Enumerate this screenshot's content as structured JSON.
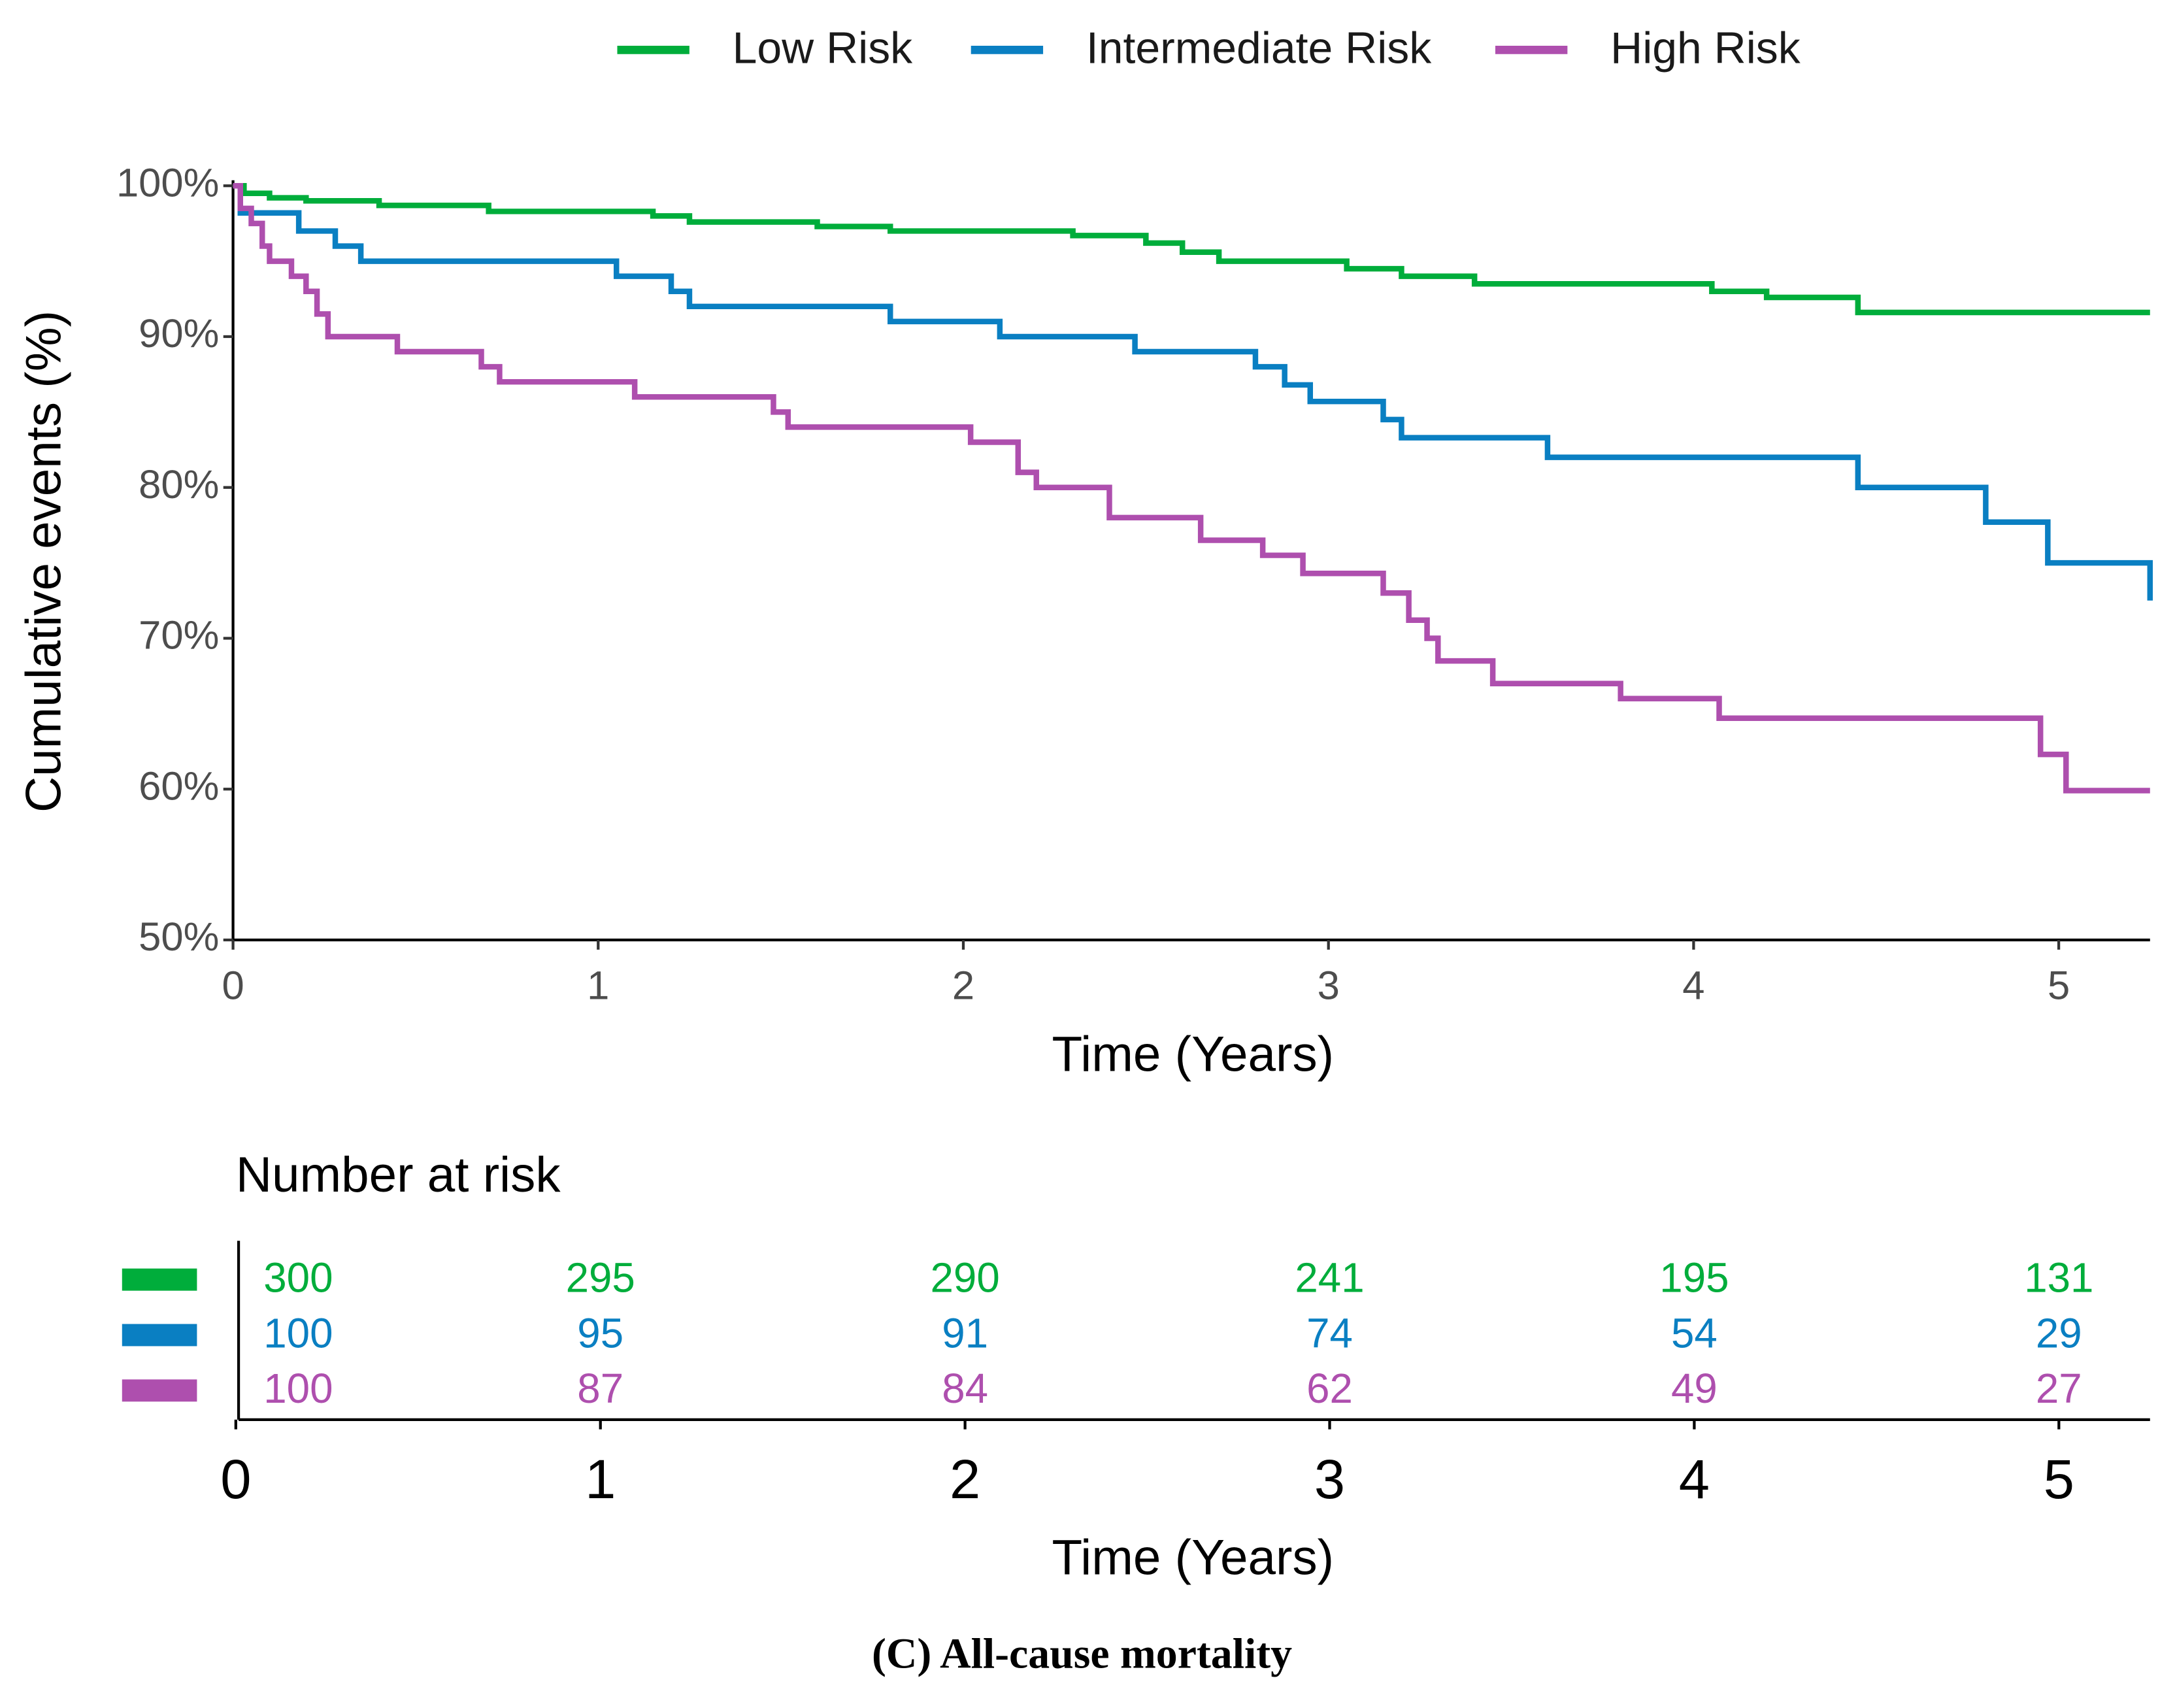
{
  "chart_data": {
    "type": "line",
    "drawstyle": "steps-post",
    "legend": "top",
    "xlabel": "Time (Years)",
    "ylabel": "Cumulative events (%)",
    "xlim": [
      0,
      5.25
    ],
    "xticks": [
      0,
      1,
      2,
      3,
      4,
      5
    ],
    "ylim": [
      50,
      100
    ],
    "yticks": [
      {
        "value": 50,
        "label": "50%"
      },
      {
        "value": 60,
        "label": "60%"
      },
      {
        "value": 70,
        "label": "70%"
      },
      {
        "value": 80,
        "label": "80%"
      },
      {
        "value": 90,
        "label": "90%"
      },
      {
        "value": 100,
        "label": "100%"
      }
    ],
    "series": [
      {
        "name": "Low Risk",
        "color": "#00ad3b",
        "x": [
          0,
          0.03,
          0.1,
          0.2,
          0.4,
          0.7,
          1.15,
          1.25,
          1.6,
          1.8,
          2.3,
          2.5,
          2.6,
          2.7,
          3.05,
          3.2,
          3.4,
          4.05,
          4.2,
          4.45,
          5.25
        ],
        "values": [
          100,
          99.5,
          99.2,
          99,
          98.7,
          98.3,
          98,
          97.6,
          97.3,
          97,
          96.7,
          96.2,
          95.6,
          95,
          94.5,
          94,
          93.5,
          93,
          92.6,
          91.6,
          91.6
        ]
      },
      {
        "name": "Intermediate Risk",
        "color": "#0a7fc2",
        "x": [
          0,
          0.02,
          0.18,
          0.28,
          0.35,
          1.05,
          1.2,
          1.25,
          1.8,
          2.1,
          2.47,
          2.8,
          2.88,
          2.95,
          3.15,
          3.2,
          3.6,
          4.45,
          4.8,
          4.97,
          5.25
        ],
        "values": [
          100,
          98.2,
          97,
          96,
          95,
          94,
          93,
          92,
          91,
          90,
          89,
          88,
          86.8,
          85.7,
          84.5,
          83.3,
          82,
          80,
          77.7,
          75,
          72.5
        ]
      },
      {
        "name": "High Risk",
        "color": "#ae4fae",
        "x": [
          0,
          0.02,
          0.05,
          0.08,
          0.1,
          0.16,
          0.2,
          0.23,
          0.26,
          0.45,
          0.68,
          0.73,
          1.1,
          1.48,
          1.52,
          2.02,
          2.15,
          2.2,
          2.4,
          2.65,
          2.82,
          2.93,
          3.15,
          3.22,
          3.27,
          3.3,
          3.45,
          3.8,
          4.07,
          4.95,
          5.02,
          5.25
        ],
        "values": [
          100,
          98.5,
          97.5,
          96,
          95,
          94,
          93,
          91.5,
          90,
          89,
          88,
          87,
          86,
          85,
          84,
          83,
          81,
          80,
          78,
          76.5,
          75.5,
          74.3,
          73,
          71.2,
          70,
          68.5,
          67,
          66,
          64.7,
          62.3,
          59.9,
          59.9
        ]
      }
    ],
    "risk_table": {
      "title": "Number at risk",
      "xlabel": "Time (Years)",
      "xlim": [
        0,
        5.25
      ],
      "xticks": [
        0,
        1,
        2,
        3,
        4,
        5
      ],
      "rows": [
        {
          "values": [
            300,
            295,
            290,
            241,
            195,
            131
          ]
        },
        {
          "values": [
            100,
            95,
            91,
            74,
            54,
            29
          ]
        },
        {
          "values": [
            100,
            87,
            84,
            62,
            49,
            27
          ]
        }
      ]
    },
    "caption": "(C) All-cause mortality"
  }
}
